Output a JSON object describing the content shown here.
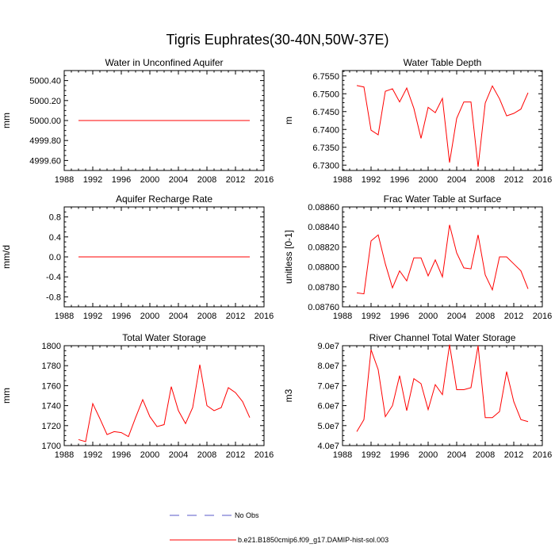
{
  "figure_title": "Tigris Euphrates(30-40N,50W-37E)",
  "legend": {
    "obs_label": "No Obs",
    "obs_color": "#5a5ac8",
    "model_label": "b.e21.B1850cmip6.f09_g17.DAMIP-hist-sol.003",
    "model_color": "#ff0000"
  },
  "chart_data": [
    {
      "type": "line",
      "title": "Water in Unconfined Aquifer",
      "ylabel": "mm",
      "xlim": [
        1988,
        2016
      ],
      "x_ticks": [
        1988,
        1992,
        1996,
        2000,
        2004,
        2008,
        2012,
        2016
      ],
      "x_tick_labels": [
        "1988",
        "1992",
        "1996",
        "2000",
        "2004",
        "2008",
        "2012",
        "2016"
      ],
      "ylim": [
        4999.5,
        5000.5
      ],
      "y_ticks": [
        4999.6,
        4999.8,
        5000.0,
        5000.2,
        5000.4
      ],
      "y_tick_labels": [
        "4999.60",
        "4999.80",
        "5000.00",
        "5000.20",
        "5000.40"
      ],
      "series": [
        {
          "color": "#ff0000",
          "x": [
            1990,
            1991,
            1992,
            1993,
            1994,
            1995,
            1996,
            1997,
            1998,
            1999,
            2000,
            2001,
            2002,
            2003,
            2004,
            2005,
            2006,
            2007,
            2008,
            2009,
            2010,
            2011,
            2012,
            2013,
            2014
          ],
          "values": [
            5000,
            5000,
            5000,
            5000,
            5000,
            5000,
            5000,
            5000,
            5000,
            5000,
            5000,
            5000,
            5000,
            5000,
            5000,
            5000,
            5000,
            5000,
            5000,
            5000,
            5000,
            5000,
            5000,
            5000,
            5000
          ]
        }
      ]
    },
    {
      "type": "line",
      "title": "Water Table Depth",
      "ylabel": "m",
      "xlim": [
        1988,
        2016
      ],
      "x_ticks": [
        1988,
        1992,
        1996,
        2000,
        2004,
        2008,
        2012,
        2016
      ],
      "x_tick_labels": [
        "1988",
        "1992",
        "1996",
        "2000",
        "2004",
        "2008",
        "2012",
        "2016"
      ],
      "ylim": [
        6.7285,
        6.7565
      ],
      "y_ticks": [
        6.73,
        6.735,
        6.74,
        6.745,
        6.75,
        6.755
      ],
      "y_tick_labels": [
        "6.7300",
        "6.7350",
        "6.7400",
        "6.7450",
        "6.7500",
        "6.7550"
      ],
      "series": [
        {
          "color": "#ff0000",
          "x": [
            1990,
            1991,
            1992,
            1993,
            1994,
            1995,
            1996,
            1997,
            1998,
            1999,
            2000,
            2001,
            2002,
            2003,
            2004,
            2005,
            2006,
            2007,
            2008,
            2009,
            2010,
            2011,
            2012,
            2013,
            2014
          ],
          "values": [
            6.7523,
            6.7519,
            6.7398,
            6.7385,
            6.7507,
            6.7514,
            6.7477,
            6.7516,
            6.7459,
            6.7375,
            6.7462,
            6.7447,
            6.7487,
            6.7307,
            6.7431,
            6.7477,
            6.7477,
            6.7295,
            6.7474,
            6.7522,
            6.7486,
            6.7438,
            6.7445,
            6.7457,
            6.7503
          ]
        }
      ]
    },
    {
      "type": "line",
      "title": "Aquifer Recharge Rate",
      "ylabel": "mm/d",
      "xlim": [
        1988,
        2016
      ],
      "x_ticks": [
        1988,
        1992,
        1996,
        2000,
        2004,
        2008,
        2012,
        2016
      ],
      "x_tick_labels": [
        "1988",
        "1992",
        "1996",
        "2000",
        "2004",
        "2008",
        "2012",
        "2016"
      ],
      "ylim": [
        -1.0,
        1.0
      ],
      "y_ticks": [
        -0.8,
        -0.4,
        0.0,
        0.4,
        0.8
      ],
      "y_tick_labels": [
        "-0.8",
        "-0.4",
        "0.0",
        "0.4",
        "0.8"
      ],
      "series": [
        {
          "color": "#ff0000",
          "x": [
            1990,
            1991,
            1992,
            1993,
            1994,
            1995,
            1996,
            1997,
            1998,
            1999,
            2000,
            2001,
            2002,
            2003,
            2004,
            2005,
            2006,
            2007,
            2008,
            2009,
            2010,
            2011,
            2012,
            2013,
            2014
          ],
          "values": [
            0,
            0,
            0,
            0,
            0,
            0,
            0,
            0,
            0,
            0,
            0,
            0,
            0,
            0,
            0,
            0,
            0,
            0,
            0,
            0,
            0,
            0,
            0,
            0,
            0
          ]
        }
      ]
    },
    {
      "type": "line",
      "title": "Frac Water Table at Surface",
      "ylabel": "unitless [0-1]",
      "xlim": [
        1988,
        2016
      ],
      "x_ticks": [
        1988,
        1992,
        1996,
        2000,
        2004,
        2008,
        2012,
        2016
      ],
      "x_tick_labels": [
        "1988",
        "1992",
        "1996",
        "2000",
        "2004",
        "2008",
        "2012",
        "2016"
      ],
      "ylim": [
        0.0876,
        0.0886
      ],
      "y_ticks": [
        0.0876,
        0.0878,
        0.088,
        0.0882,
        0.0884,
        0.0886
      ],
      "y_tick_labels": [
        "0.08760",
        "0.08780",
        "0.08800",
        "0.08820",
        "0.08840",
        "0.08860"
      ],
      "series": [
        {
          "color": "#ff0000",
          "x": [
            1990,
            1991,
            1992,
            1993,
            1994,
            1995,
            1996,
            1997,
            1998,
            1999,
            2000,
            2001,
            2002,
            2003,
            2004,
            2005,
            2006,
            2007,
            2008,
            2009,
            2010,
            2011,
            2012,
            2013,
            2014
          ],
          "values": [
            0.08774,
            0.08773,
            0.08826,
            0.08832,
            0.08803,
            0.08779,
            0.08796,
            0.08786,
            0.08809,
            0.08809,
            0.08791,
            0.08807,
            0.0879,
            0.08842,
            0.08814,
            0.08799,
            0.08798,
            0.08832,
            0.08792,
            0.08777,
            0.0881,
            0.0881,
            0.08803,
            0.08796,
            0.08778
          ]
        }
      ]
    },
    {
      "type": "line",
      "title": "Total Water Storage",
      "ylabel": "mm",
      "xlim": [
        1988,
        2016
      ],
      "x_ticks": [
        1988,
        1992,
        1996,
        2000,
        2004,
        2008,
        2012,
        2016
      ],
      "x_tick_labels": [
        "1988",
        "1992",
        "1996",
        "2000",
        "2004",
        "2008",
        "2012",
        "2016"
      ],
      "ylim": [
        1700,
        1800
      ],
      "y_ticks": [
        1700,
        1720,
        1740,
        1760,
        1780,
        1800
      ],
      "y_tick_labels": [
        "1700",
        "1720",
        "1740",
        "1760",
        "1780",
        "1800"
      ],
      "series": [
        {
          "color": "#ff0000",
          "x": [
            1990,
            1991,
            1992,
            1993,
            1994,
            1995,
            1996,
            1997,
            1998,
            1999,
            2000,
            2001,
            2002,
            2003,
            2004,
            2005,
            2006,
            2007,
            2008,
            2009,
            2010,
            2011,
            2012,
            2013,
            2014
          ],
          "values": [
            1706,
            1704,
            1742,
            1727,
            1711,
            1714,
            1713,
            1709,
            1728,
            1746,
            1729,
            1719,
            1721,
            1759,
            1735,
            1722,
            1738,
            1781,
            1740,
            1735,
            1738,
            1758,
            1753,
            1744,
            1728
          ]
        }
      ]
    },
    {
      "type": "line",
      "title": "River Channel Total Water Storage",
      "ylabel": "m3",
      "xlim": [
        1988,
        2016
      ],
      "x_ticks": [
        1988,
        1992,
        1996,
        2000,
        2004,
        2008,
        2012,
        2016
      ],
      "x_tick_labels": [
        "1988",
        "1992",
        "1996",
        "2000",
        "2004",
        "2008",
        "2012",
        "2016"
      ],
      "ylim": [
        40000000,
        90000000
      ],
      "y_ticks": [
        40000000,
        50000000,
        60000000,
        70000000,
        80000000,
        90000000
      ],
      "y_tick_labels": [
        "4.0e7",
        "5.0e7",
        "6.0e7",
        "7.0e7",
        "8.0e7",
        "9.0e7"
      ],
      "series": [
        {
          "color": "#ff0000",
          "x": [
            1990,
            1991,
            1992,
            1993,
            1994,
            1995,
            1996,
            1997,
            1998,
            1999,
            2000,
            2001,
            2002,
            2003,
            2004,
            2005,
            2006,
            2007,
            2008,
            2009,
            2010,
            2011,
            2012,
            2013,
            2014
          ],
          "values": [
            47000000,
            53000000,
            88000000,
            78000000,
            54500000,
            60000000,
            75000000,
            57500000,
            73500000,
            71000000,
            58000000,
            70500000,
            65500000,
            90500000,
            68000000,
            68000000,
            69000000,
            90000000,
            54000000,
            54000000,
            57000000,
            77000000,
            62000000,
            53000000,
            52000000
          ]
        }
      ]
    }
  ]
}
